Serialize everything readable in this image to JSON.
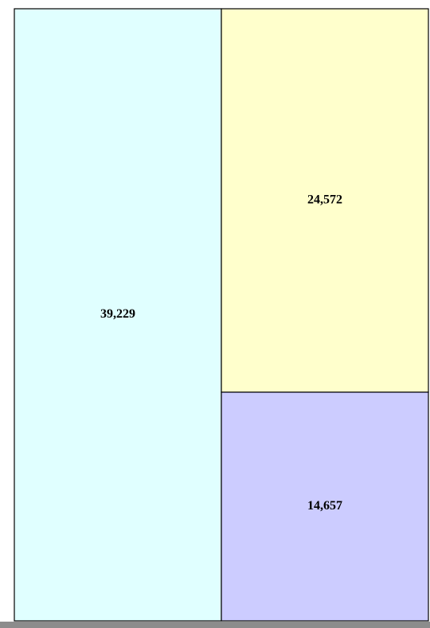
{
  "chart_data": {
    "type": "treemap",
    "values": [
      39229,
      24572,
      14657
    ],
    "value_labels": [
      "39,229",
      "24,572",
      "14,657"
    ],
    "colors": [
      "#e0ffff",
      "#ffffcc",
      "#ccccff"
    ]
  }
}
